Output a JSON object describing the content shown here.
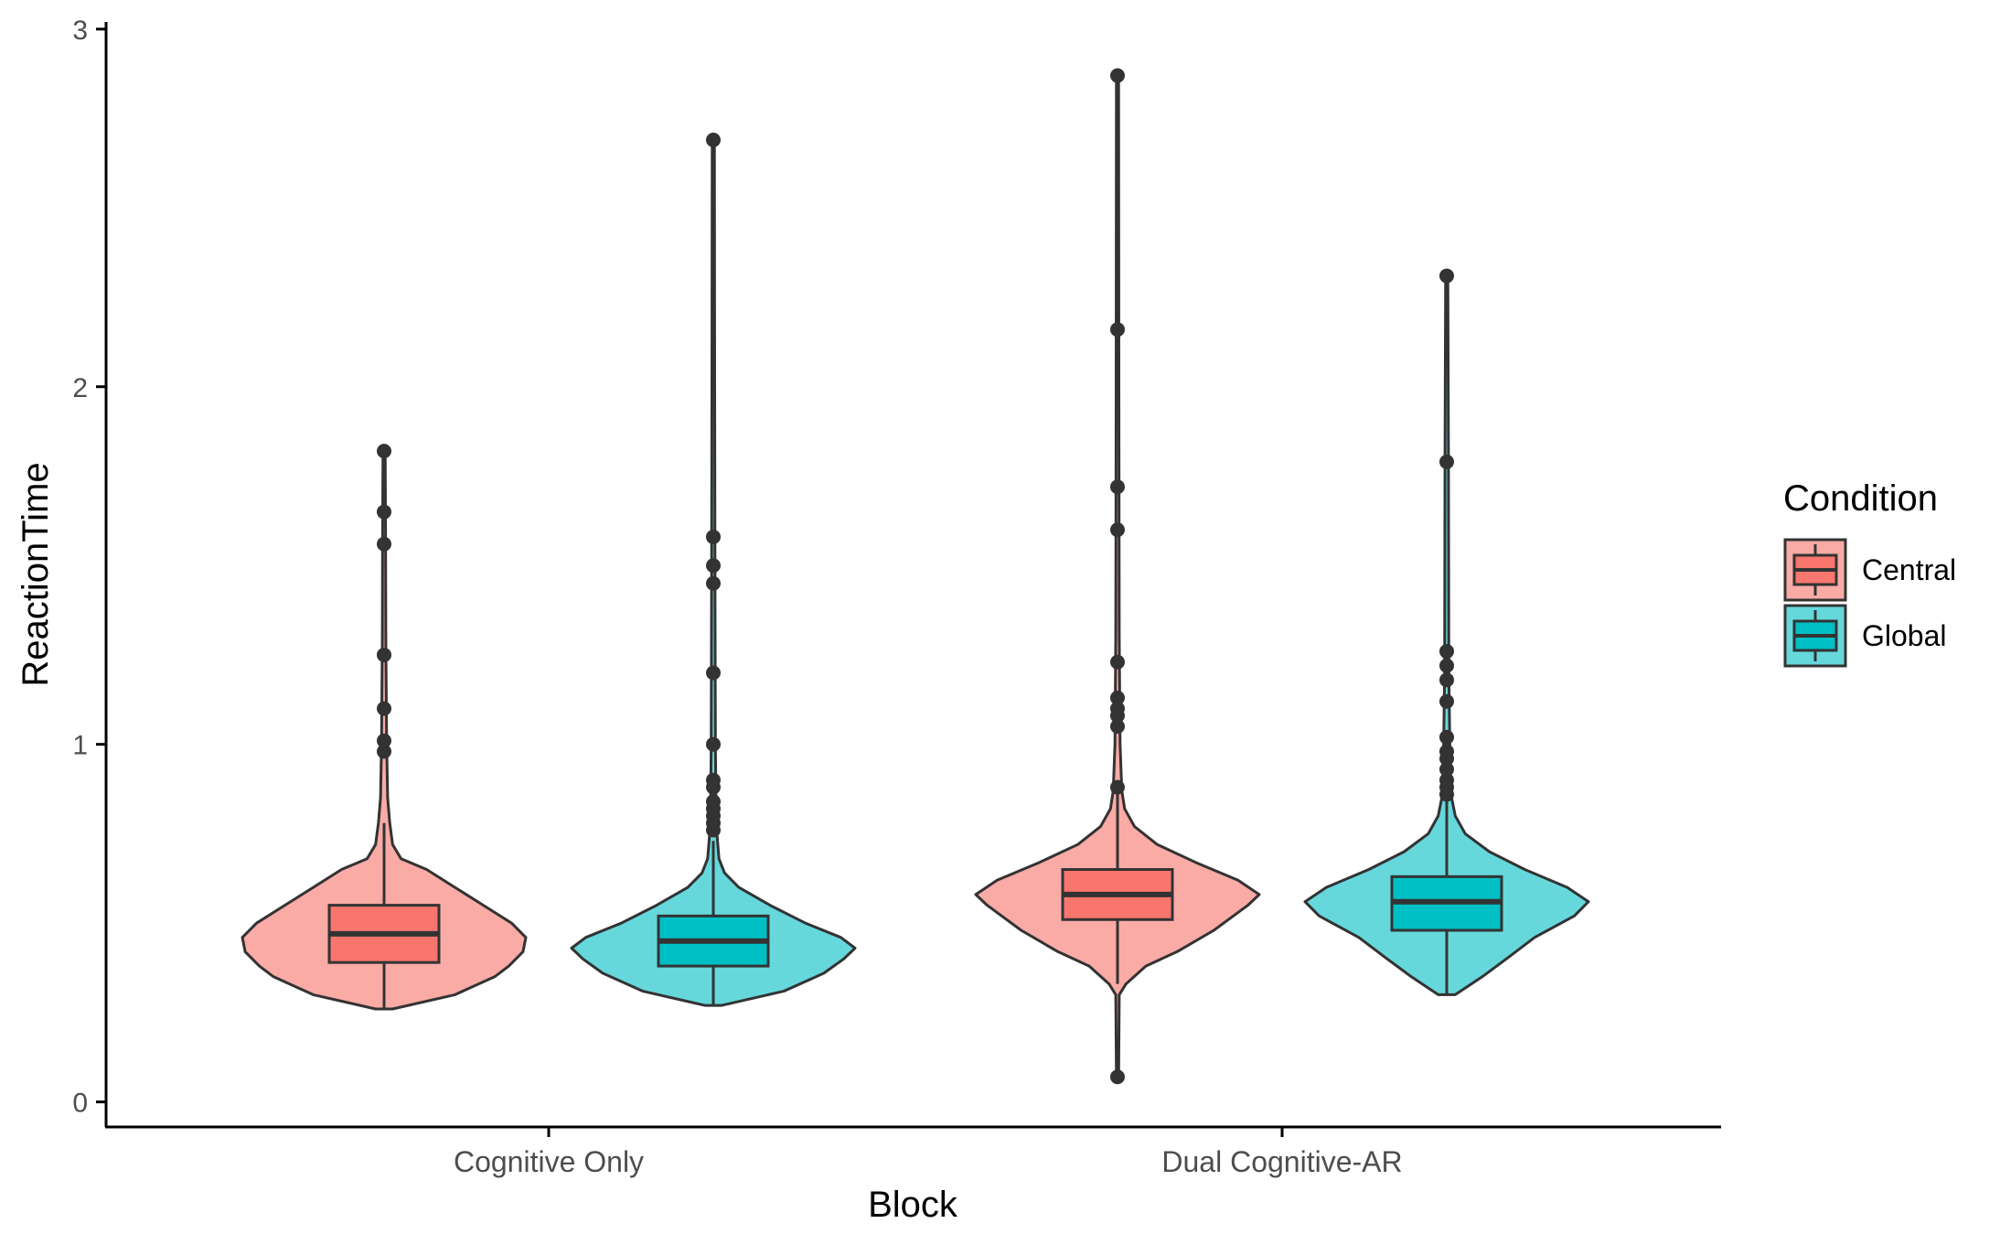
{
  "chart_data": {
    "type": "violin",
    "xlabel": "Block",
    "ylabel": "ReactionTime",
    "categories": [
      "Cognitive Only",
      "Dual Cognitive-AR"
    ],
    "ylim": [
      -0.07,
      3.02
    ],
    "yticks": [
      0,
      1,
      2,
      3
    ],
    "ytick_labels": [
      "0",
      "1",
      "2",
      "3"
    ],
    "grid": false,
    "legend": {
      "title": "Condition",
      "position": "right",
      "entries": [
        "Central",
        "Global"
      ]
    },
    "series": [
      {
        "name": "Central",
        "color": "#F8766D",
        "violin_fill": "#FAABA6",
        "groups": [
          {
            "category": "Cognitive Only",
            "box": {
              "q1": 0.39,
              "median": 0.47,
              "q3": 0.55,
              "whisker_low": 0.26,
              "whisker_high": 0.78
            },
            "density": [
              [
                0.26,
                0.06
              ],
              [
                0.3,
                0.5
              ],
              [
                0.35,
                0.78
              ],
              [
                0.38,
                0.88
              ],
              [
                0.42,
                0.98
              ],
              [
                0.46,
                1.0
              ],
              [
                0.5,
                0.9
              ],
              [
                0.55,
                0.7
              ],
              [
                0.6,
                0.5
              ],
              [
                0.65,
                0.3
              ],
              [
                0.68,
                0.12
              ],
              [
                0.72,
                0.06
              ],
              [
                0.78,
                0.04
              ],
              [
                0.85,
                0.025
              ],
              [
                1.0,
                0.018
              ],
              [
                1.3,
                0.012
              ],
              [
                1.6,
                0.01
              ],
              [
                1.82,
                0.008
              ]
            ],
            "outliers": [
              0.98,
              1.01,
              1.1,
              1.25,
              1.56,
              1.65,
              1.82
            ]
          },
          {
            "category": "Dual Cognitive-AR",
            "box": {
              "q1": 0.51,
              "median": 0.58,
              "q3": 0.65,
              "whisker_low": 0.33,
              "whisker_high": 0.87
            },
            "density": [
              [
                0.07,
                0.008
              ],
              [
                0.3,
                0.012
              ],
              [
                0.33,
                0.06
              ],
              [
                0.38,
                0.2
              ],
              [
                0.42,
                0.42
              ],
              [
                0.48,
                0.68
              ],
              [
                0.55,
                0.92
              ],
              [
                0.58,
                1.0
              ],
              [
                0.62,
                0.85
              ],
              [
                0.67,
                0.55
              ],
              [
                0.72,
                0.28
              ],
              [
                0.77,
                0.12
              ],
              [
                0.82,
                0.05
              ],
              [
                0.87,
                0.03
              ],
              [
                1.0,
                0.018
              ],
              [
                1.3,
                0.012
              ],
              [
                2.0,
                0.01
              ],
              [
                2.87,
                0.008
              ]
            ],
            "outliers": [
              0.07,
              0.88,
              1.05,
              1.08,
              1.1,
              1.13,
              1.23,
              1.6,
              1.72,
              2.16,
              2.87
            ]
          }
        ]
      },
      {
        "name": "Global",
        "color": "#00BFC4",
        "violin_fill": "#66D8DC",
        "groups": [
          {
            "category": "Cognitive Only",
            "box": {
              "q1": 0.38,
              "median": 0.45,
              "q3": 0.52,
              "whisker_low": 0.27,
              "whisker_high": 0.73
            },
            "density": [
              [
                0.27,
                0.06
              ],
              [
                0.31,
                0.5
              ],
              [
                0.36,
                0.78
              ],
              [
                0.4,
                0.92
              ],
              [
                0.43,
                1.0
              ],
              [
                0.46,
                0.9
              ],
              [
                0.5,
                0.65
              ],
              [
                0.55,
                0.4
              ],
              [
                0.6,
                0.18
              ],
              [
                0.64,
                0.08
              ],
              [
                0.68,
                0.04
              ],
              [
                0.73,
                0.03
              ],
              [
                0.78,
                0.02
              ],
              [
                1.0,
                0.015
              ],
              [
                1.4,
                0.012
              ],
              [
                2.0,
                0.01
              ],
              [
                2.69,
                0.008
              ]
            ],
            "outliers": [
              0.76,
              0.78,
              0.8,
              0.82,
              0.84,
              0.88,
              0.9,
              1.0,
              1.2,
              1.45,
              1.5,
              1.58,
              2.69
            ]
          },
          {
            "category": "Dual Cognitive-AR",
            "box": {
              "q1": 0.48,
              "median": 0.56,
              "q3": 0.63,
              "whisker_low": 0.3,
              "whisker_high": 0.85
            },
            "density": [
              [
                0.3,
                0.06
              ],
              [
                0.35,
                0.25
              ],
              [
                0.4,
                0.42
              ],
              [
                0.46,
                0.62
              ],
              [
                0.52,
                0.9
              ],
              [
                0.56,
                1.0
              ],
              [
                0.6,
                0.85
              ],
              [
                0.65,
                0.55
              ],
              [
                0.7,
                0.3
              ],
              [
                0.75,
                0.13
              ],
              [
                0.8,
                0.06
              ],
              [
                0.85,
                0.035
              ],
              [
                0.9,
                0.025
              ],
              [
                1.2,
                0.015
              ],
              [
                1.8,
                0.012
              ],
              [
                2.31,
                0.008
              ]
            ],
            "outliers": [
              0.86,
              0.88,
              0.9,
              0.93,
              0.96,
              0.98,
              1.02,
              1.12,
              1.18,
              1.22,
              1.26,
              1.79,
              2.31
            ]
          }
        ]
      }
    ]
  }
}
